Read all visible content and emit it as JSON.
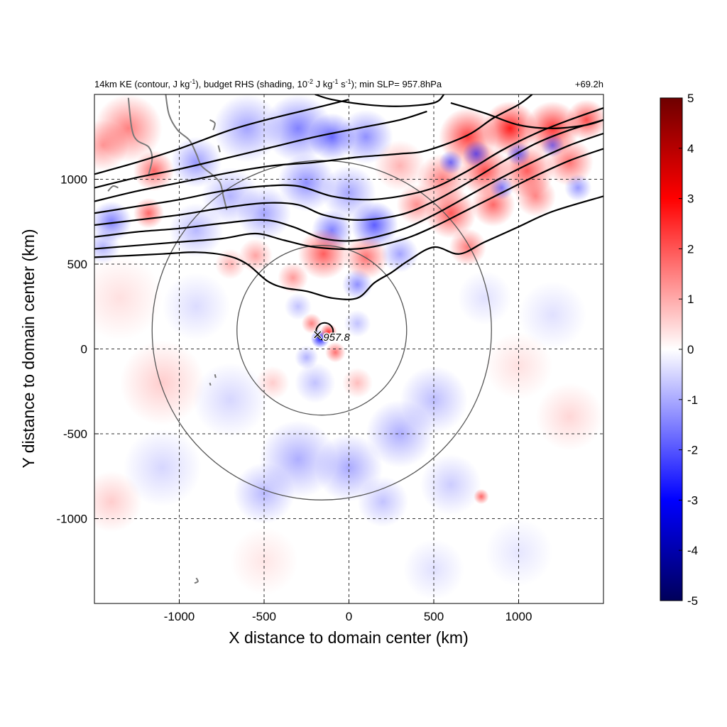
{
  "chart_data": {
    "type": "heatmap",
    "title_left_prefix": "14km KE (contour, J kg",
    "title_left_sup1": "-1",
    "title_left_mid1": "), budget RHS (shading, 10",
    "title_left_sup2": "-2",
    "title_left_mid2": " J kg",
    "title_left_sup3": "-1",
    "title_left_mid3": " s",
    "title_left_sup4": "-1",
    "title_left_suffix": "); min SLP= 957.8hPa",
    "title_right": "+69.2h",
    "xlabel": "X distance to domain center (km)",
    "ylabel": "Y distance to domain center (km)",
    "xlim": [
      -1500,
      1500
    ],
    "ylim": [
      -1500,
      1500
    ],
    "xticks": [
      -1000,
      -500,
      0,
      500,
      1000
    ],
    "yticks": [
      -1000,
      -500,
      0,
      500,
      1000
    ],
    "xtick_labels": [
      "-1000",
      "-500",
      "0",
      "500",
      "1000"
    ],
    "ytick_labels": [
      "-1000",
      "-500",
      "0",
      "500",
      "1000"
    ],
    "grid": true,
    "colorbar": {
      "min": -5,
      "max": 5,
      "ticks": [
        -5,
        -4,
        -3,
        -2,
        -1,
        0,
        1,
        2,
        3,
        4,
        5
      ],
      "tick_labels": [
        "-5",
        "-4",
        "-3",
        "-2",
        "-1",
        "0",
        "1",
        "2",
        "3",
        "4",
        "5"
      ],
      "colors": [
        "#00005a",
        "#0000ff",
        "#ffffff",
        "#ff0000",
        "#6e0000"
      ]
    },
    "storm_center": {
      "x": -160,
      "y": 70,
      "marker": "×",
      "label": "957.8"
    },
    "range_rings": {
      "center_x": -160,
      "center_y": 110,
      "radii": [
        500,
        1000
      ]
    },
    "ke_contours": [
      [
        [
          -1500,
          1030
        ],
        [
          -1250,
          1100
        ],
        [
          -1000,
          1180
        ],
        [
          -700,
          1290
        ],
        [
          -450,
          1360
        ],
        [
          -200,
          1420
        ],
        [
          0,
          1470
        ]
      ],
      [
        [
          -1500,
          950
        ],
        [
          -1250,
          1010
        ],
        [
          -1000,
          1060
        ],
        [
          -700,
          1130
        ],
        [
          -450,
          1190
        ],
        [
          -200,
          1250
        ],
        [
          50,
          1300
        ],
        [
          300,
          1350
        ],
        [
          460,
          1400
        ]
      ],
      [
        [
          -1500,
          870
        ],
        [
          -1250,
          930
        ],
        [
          -1000,
          980
        ],
        [
          -700,
          1040
        ],
        [
          -450,
          1080
        ],
        [
          -200,
          1100
        ],
        [
          50,
          1130
        ],
        [
          300,
          1150
        ],
        [
          460,
          1170
        ],
        [
          700,
          1260
        ],
        [
          850,
          1360
        ],
        [
          1000,
          1440
        ],
        [
          1080,
          1500
        ]
      ],
      [
        [
          -1500,
          800
        ],
        [
          -1250,
          840
        ],
        [
          -1000,
          880
        ],
        [
          -750,
          930
        ],
        [
          -500,
          960
        ],
        [
          -300,
          960
        ],
        [
          -100,
          900
        ],
        [
          100,
          880
        ],
        [
          300,
          900
        ],
        [
          500,
          950
        ],
        [
          700,
          1050
        ],
        [
          900,
          1170
        ],
        [
          1100,
          1270
        ],
        [
          1300,
          1350
        ],
        [
          1500,
          1420
        ]
      ],
      [
        [
          -1500,
          730
        ],
        [
          -1250,
          760
        ],
        [
          -1000,
          790
        ],
        [
          -750,
          830
        ],
        [
          -500,
          860
        ],
        [
          -300,
          850
        ],
        [
          -150,
          790
        ],
        [
          50,
          760
        ],
        [
          300,
          790
        ],
        [
          500,
          870
        ],
        [
          700,
          980
        ],
        [
          900,
          1100
        ],
        [
          1100,
          1210
        ],
        [
          1300,
          1290
        ],
        [
          1500,
          1350
        ]
      ],
      [
        [
          -1500,
          660
        ],
        [
          -1250,
          690
        ],
        [
          -1000,
          710
        ],
        [
          -750,
          740
        ],
        [
          -500,
          760
        ],
        [
          -330,
          720
        ],
        [
          -150,
          650
        ],
        [
          50,
          640
        ],
        [
          300,
          700
        ],
        [
          500,
          790
        ],
        [
          700,
          900
        ],
        [
          900,
          1010
        ],
        [
          1100,
          1110
        ],
        [
          1300,
          1200
        ],
        [
          1500,
          1270
        ]
      ],
      [
        [
          -1500,
          590
        ],
        [
          -1250,
          610
        ],
        [
          -1000,
          630
        ],
        [
          -750,
          650
        ],
        [
          -550,
          680
        ],
        [
          -380,
          640
        ],
        [
          -200,
          600
        ],
        [
          50,
          590
        ],
        [
          300,
          640
        ],
        [
          500,
          720
        ],
        [
          700,
          820
        ],
        [
          900,
          920
        ],
        [
          1100,
          1020
        ],
        [
          1300,
          1110
        ],
        [
          1500,
          1180
        ]
      ],
      [
        [
          -1500,
          540
        ],
        [
          -1300,
          550
        ],
        [
          -1100,
          560
        ],
        [
          -900,
          570
        ],
        [
          -720,
          550
        ],
        [
          -600,
          500
        ],
        [
          -480,
          400
        ],
        [
          -380,
          360
        ],
        [
          -250,
          340
        ],
        [
          -100,
          300
        ],
        [
          50,
          300
        ],
        [
          150,
          390
        ],
        [
          250,
          450
        ],
        [
          350,
          520
        ],
        [
          500,
          600
        ],
        [
          650,
          560
        ],
        [
          800,
          630
        ],
        [
          1000,
          720
        ],
        [
          1200,
          810
        ],
        [
          1500,
          900
        ]
      ],
      [
        [
          -200,
          1500
        ],
        [
          -100,
          1470
        ],
        [
          100,
          1440
        ],
        [
          300,
          1430
        ],
        [
          500,
          1450
        ],
        [
          560,
          1500
        ]
      ],
      [
        [
          600,
          1450
        ],
        [
          800,
          1390
        ],
        [
          1000,
          1320
        ],
        [
          1200,
          1300
        ],
        [
          1400,
          1320
        ],
        [
          1500,
          1350
        ]
      ]
    ],
    "coastlines": [
      [
        [
          -1080,
          1500
        ],
        [
          -1060,
          1380
        ],
        [
          -1010,
          1290
        ],
        [
          -940,
          1230
        ],
        [
          -900,
          1150
        ],
        [
          -870,
          1080
        ],
        [
          -810,
          1030
        ],
        [
          -760,
          980
        ],
        [
          -740,
          900
        ],
        [
          -720,
          820
        ]
      ],
      [
        [
          -1300,
          1480
        ],
        [
          -1280,
          1300
        ],
        [
          -1250,
          1230
        ],
        [
          -1180,
          1190
        ],
        [
          -1160,
          1120
        ],
        [
          -1180,
          1030
        ]
      ],
      [
        [
          -1420,
          930
        ],
        [
          -1390,
          960
        ],
        [
          -1360,
          950
        ]
      ],
      [
        [
          -820,
          1350
        ],
        [
          -790,
          1330
        ],
        [
          -800,
          1290
        ]
      ],
      [
        [
          -770,
          1200
        ],
        [
          -760,
          1160
        ]
      ],
      [
        [
          -900,
          -1350
        ],
        [
          -890,
          -1370
        ],
        [
          -910,
          -1380
        ]
      ],
      [
        [
          -790,
          -150
        ],
        [
          -785,
          -170
        ]
      ],
      [
        [
          -820,
          -200
        ],
        [
          -815,
          -215
        ]
      ]
    ],
    "anomaly_blobs": [
      {
        "x": -1300,
        "y": 1300,
        "r": 200,
        "v": 2.5
      },
      {
        "x": -1150,
        "y": 1050,
        "r": 120,
        "v": 3.0
      },
      {
        "x": -1450,
        "y": 1200,
        "r": 150,
        "v": 2.0
      },
      {
        "x": -1400,
        "y": 750,
        "r": 120,
        "v": -2.5
      },
      {
        "x": -1180,
        "y": 800,
        "r": 90,
        "v": 3.0
      },
      {
        "x": -900,
        "y": 1100,
        "r": 150,
        "v": -2.0
      },
      {
        "x": -600,
        "y": 1300,
        "r": 200,
        "v": -1.8
      },
      {
        "x": -300,
        "y": 1300,
        "r": 200,
        "v": -2.5
      },
      {
        "x": -100,
        "y": 1250,
        "r": 140,
        "v": -3.0
      },
      {
        "x": 100,
        "y": 1250,
        "r": 160,
        "v": -2.2
      },
      {
        "x": -700,
        "y": 900,
        "r": 170,
        "v": -1.5
      },
      {
        "x": -500,
        "y": 800,
        "r": 160,
        "v": -1.8
      },
      {
        "x": -900,
        "y": 700,
        "r": 160,
        "v": -1.4
      },
      {
        "x": -250,
        "y": 980,
        "r": 170,
        "v": -2.2
      },
      {
        "x": 0,
        "y": 920,
        "r": 160,
        "v": -1.8
      },
      {
        "x": 150,
        "y": 730,
        "r": 140,
        "v": -3.2
      },
      {
        "x": -100,
        "y": 700,
        "r": 120,
        "v": -2.5
      },
      {
        "x": 300,
        "y": 1080,
        "r": 150,
        "v": 1.5
      },
      {
        "x": -1450,
        "y": 600,
        "r": 100,
        "v": -1.5
      },
      {
        "x": -550,
        "y": 550,
        "r": 100,
        "v": 1.8
      },
      {
        "x": -700,
        "y": 500,
        "r": 90,
        "v": 1.5
      },
      {
        "x": -150,
        "y": 560,
        "r": 150,
        "v": 3.2
      },
      {
        "x": 100,
        "y": 540,
        "r": 130,
        "v": 2.8
      },
      {
        "x": 300,
        "y": 560,
        "r": 110,
        "v": -1.8
      },
      {
        "x": -330,
        "y": 420,
        "r": 90,
        "v": 2.0
      },
      {
        "x": 50,
        "y": 380,
        "r": 90,
        "v": -2.2
      },
      {
        "x": 700,
        "y": 1250,
        "r": 170,
        "v": 3.8
      },
      {
        "x": 950,
        "y": 1300,
        "r": 160,
        "v": 4.5
      },
      {
        "x": 1200,
        "y": 1300,
        "r": 160,
        "v": 4.0
      },
      {
        "x": 1400,
        "y": 1350,
        "r": 120,
        "v": 3.5
      },
      {
        "x": 550,
        "y": 1000,
        "r": 150,
        "v": 2.5
      },
      {
        "x": 800,
        "y": 1050,
        "r": 150,
        "v": 3.5
      },
      {
        "x": 1050,
        "y": 1050,
        "r": 160,
        "v": 3.2
      },
      {
        "x": 1300,
        "y": 1100,
        "r": 140,
        "v": 2.8
      },
      {
        "x": 600,
        "y": 800,
        "r": 150,
        "v": 3.3
      },
      {
        "x": 850,
        "y": 850,
        "r": 130,
        "v": 3.0
      },
      {
        "x": 1100,
        "y": 900,
        "r": 120,
        "v": 2.4
      },
      {
        "x": 400,
        "y": 850,
        "r": 120,
        "v": 2.2
      },
      {
        "x": 700,
        "y": 600,
        "r": 110,
        "v": 2.6
      },
      {
        "x": 750,
        "y": 1150,
        "r": 80,
        "v": -3.0
      },
      {
        "x": 1000,
        "y": 1150,
        "r": 70,
        "v": -2.8
      },
      {
        "x": 900,
        "y": 950,
        "r": 70,
        "v": -2.5
      },
      {
        "x": 1200,
        "y": 1200,
        "r": 70,
        "v": -2.5
      },
      {
        "x": 600,
        "y": 1100,
        "r": 70,
        "v": -2.8
      },
      {
        "x": 1350,
        "y": 950,
        "r": 80,
        "v": -2.0
      },
      {
        "x": -170,
        "y": 60,
        "r": 55,
        "v": -4.8
      },
      {
        "x": -120,
        "y": 100,
        "r": 50,
        "v": 4.0
      },
      {
        "x": -220,
        "y": 150,
        "r": 60,
        "v": 2.5
      },
      {
        "x": -80,
        "y": -20,
        "r": 60,
        "v": 2.8
      },
      {
        "x": -250,
        "y": -50,
        "r": 70,
        "v": -1.5
      },
      {
        "x": -300,
        "y": 250,
        "r": 80,
        "v": -1.2
      },
      {
        "x": 50,
        "y": 150,
        "r": 80,
        "v": -1.2
      },
      {
        "x": -200,
        "y": -200,
        "r": 120,
        "v": -1.2
      },
      {
        "x": 50,
        "y": -200,
        "r": 90,
        "v": 1.3
      },
      {
        "x": -450,
        "y": -200,
        "r": 100,
        "v": 1.0
      },
      {
        "x": -700,
        "y": -300,
        "r": 220,
        "v": -0.8
      },
      {
        "x": -1100,
        "y": -200,
        "r": 250,
        "v": 1.0
      },
      {
        "x": -1350,
        "y": 300,
        "r": 250,
        "v": 0.6
      },
      {
        "x": -900,
        "y": 250,
        "r": 200,
        "v": -0.7
      },
      {
        "x": -1100,
        "y": -700,
        "r": 230,
        "v": -0.8
      },
      {
        "x": -1400,
        "y": -900,
        "r": 180,
        "v": 1.0
      },
      {
        "x": -300,
        "y": -650,
        "r": 230,
        "v": -1.6
      },
      {
        "x": 0,
        "y": -700,
        "r": 200,
        "v": -1.7
      },
      {
        "x": 300,
        "y": -500,
        "r": 200,
        "v": -1.6
      },
      {
        "x": 500,
        "y": -300,
        "r": 200,
        "v": -1.3
      },
      {
        "x": -500,
        "y": -850,
        "r": 180,
        "v": -1.4
      },
      {
        "x": 200,
        "y": -900,
        "r": 150,
        "v": -1.2
      },
      {
        "x": 600,
        "y": -800,
        "r": 180,
        "v": -1.0
      },
      {
        "x": 780,
        "y": -870,
        "r": 45,
        "v": 3.0
      },
      {
        "x": 1000,
        "y": -100,
        "r": 200,
        "v": 0.6
      },
      {
        "x": 1300,
        "y": -400,
        "r": 200,
        "v": 0.8
      },
      {
        "x": 1200,
        "y": 200,
        "r": 200,
        "v": -0.6
      },
      {
        "x": 1000,
        "y": -1200,
        "r": 200,
        "v": -0.5
      },
      {
        "x": -500,
        "y": -1250,
        "r": 200,
        "v": 0.5
      },
      {
        "x": 500,
        "y": -1300,
        "r": 180,
        "v": -0.6
      },
      {
        "x": 800,
        "y": 300,
        "r": 160,
        "v": -0.6
      }
    ]
  }
}
